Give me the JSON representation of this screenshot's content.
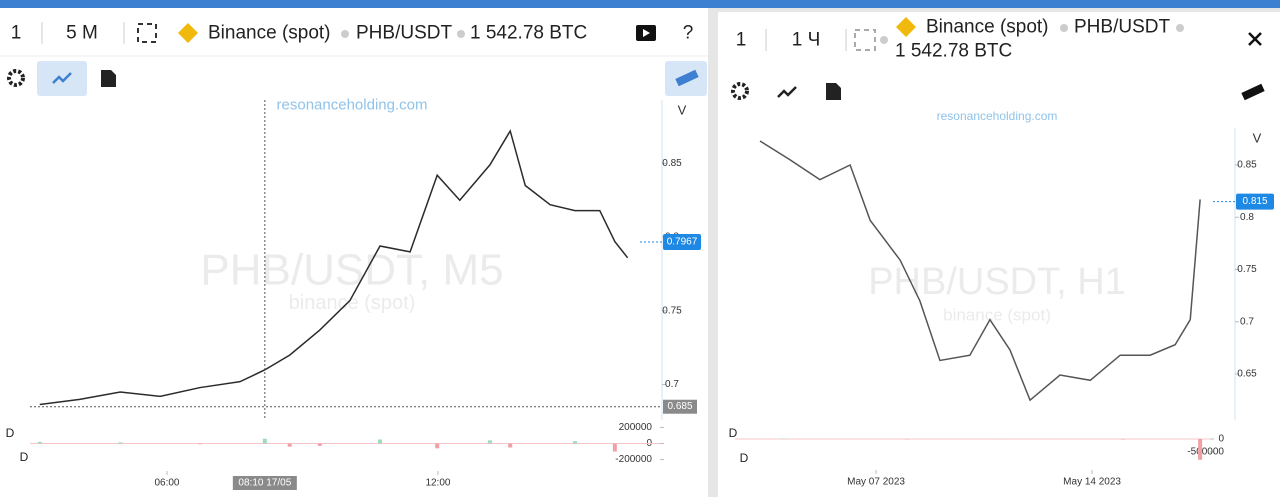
{
  "left_panel": {
    "toolbar": {
      "count": "1",
      "interval": "5 M",
      "exchange": "Binance (spot)",
      "pair": "PHB/USDT",
      "volume": "1 542.78 BTC",
      "help": "?"
    }
  },
  "right_panel": {
    "toolbar": {
      "count": "1",
      "interval": "1 Ч",
      "exchange": "Binance (spot)",
      "pair": "PHB/USDT",
      "volume": "1 542.78 BTC"
    }
  },
  "chart_data": [
    {
      "type": "line",
      "color": "#2b2b2b",
      "site": "resonanceholding.com",
      "axis_label": "V",
      "watermark": "PHB/USDT, M5",
      "watermark_sub": "binance (spot)",
      "x": [
        191,
        244,
        298,
        351,
        404,
        457,
        490,
        523,
        563,
        603,
        643,
        683,
        719,
        749,
        789,
        816,
        836,
        869,
        902,
        935,
        955,
        972
      ],
      "values": [
        0.6865,
        0.69,
        0.695,
        0.692,
        0.698,
        0.702,
        0.71,
        0.72,
        0.737,
        0.757,
        0.794,
        0.79,
        0.842,
        0.825,
        0.849,
        0.872,
        0.835,
        0.822,
        0.818,
        0.818,
        0.797,
        0.786
      ],
      "xlim": [
        178,
        1015
      ],
      "ylim": [
        0.676,
        0.893
      ],
      "xticks": [
        {
          "value": 360,
          "label": "06:00"
        },
        {
          "value": 720,
          "label": "12:00"
        }
      ],
      "yticks": [
        0.7,
        0.75,
        0.8,
        0.85
      ],
      "last_price": 0.7967,
      "crosshair_price": 0.685,
      "crosshair_time": {
        "value": 490,
        "label": "08:10 17/05"
      }
    },
    {
      "type": "bar",
      "up_color": "#9fdcbc",
      "down_color": "#f2a0a8",
      "side_labels": [
        "D",
        "D"
      ],
      "x": [
        191,
        298,
        404,
        490,
        523,
        563,
        643,
        719,
        789,
        816,
        902,
        955
      ],
      "values": [
        20000,
        15000,
        -10000,
        60000,
        -40000,
        -30000,
        50000,
        -60000,
        40000,
        -50000,
        30000,
        -100000
      ],
      "xlim": [
        178,
        1015
      ],
      "ylim": [
        -230000,
        230000
      ],
      "yticks": [
        -200000,
        0,
        200000
      ]
    },
    {
      "type": "line",
      "color": "#555555",
      "site": "resonanceholding.com",
      "axis_label": "V",
      "watermark": "PHB/USDT, H1",
      "watermark_sub": "binance (spot)",
      "x": [
        3.24,
        4.21,
        5.18,
        6.16,
        6.81,
        7.78,
        8.42,
        9.07,
        10.04,
        10.69,
        11.34,
        11.99,
        12.96,
        13.94,
        14.91,
        15.88,
        16.69,
        17.18,
        17.5
      ],
      "values": [
        0.873,
        0.855,
        0.836,
        0.85,
        0.797,
        0.759,
        0.72,
        0.663,
        0.668,
        0.702,
        0.673,
        0.625,
        0.649,
        0.644,
        0.668,
        0.668,
        0.678,
        0.702,
        0.817
      ],
      "xlim": [
        2.43,
        17.82
      ],
      "ylim": [
        0.606,
        0.8854
      ],
      "xticks": [
        {
          "value": 7,
          "label": "May 07 2023"
        },
        {
          "value": 14,
          "label": "May 14 2023"
        }
      ],
      "yticks": [
        0.65,
        0.7,
        0.75,
        0.8,
        0.85
      ],
      "last_price": 0.815
    },
    {
      "type": "bar",
      "up_color": "#9fdcbc",
      "down_color": "#f2a0a8",
      "side_labels": [
        "D",
        "D"
      ],
      "x": [
        4,
        8,
        11,
        15,
        17.5
      ],
      "values": [
        20000,
        -15000,
        10000,
        -20000,
        -800000
      ],
      "xlim": [
        2.43,
        17.82
      ],
      "ylim": [
        -885000,
        538000
      ],
      "yticks": [
        -500000,
        0
      ]
    }
  ]
}
